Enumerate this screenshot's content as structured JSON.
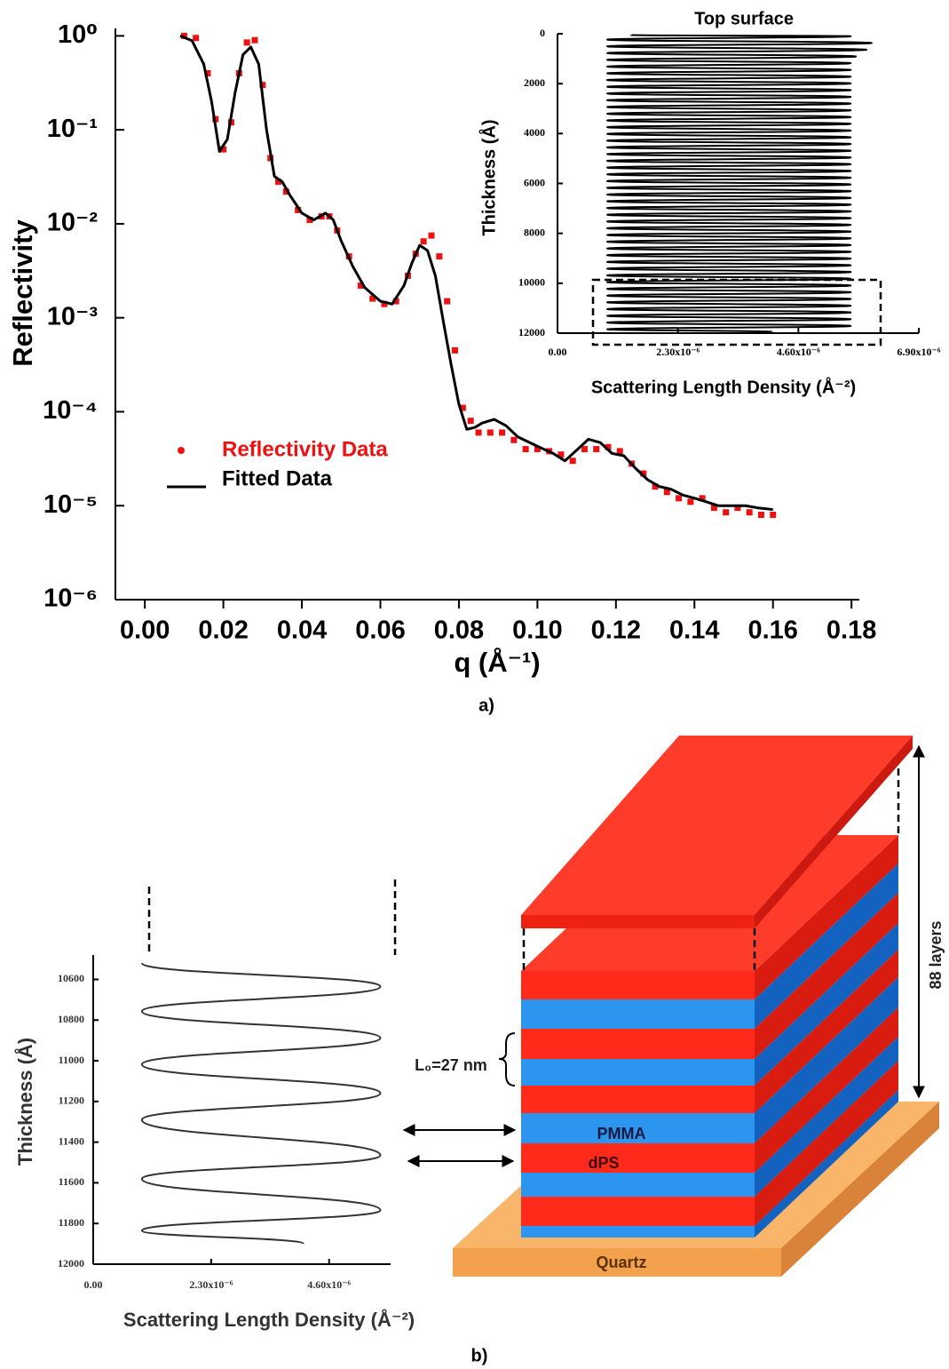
{
  "chart_data": [
    {
      "type": "line",
      "x_label": "q (Å⁻¹)",
      "y_label": "Reflectivity",
      "log_y": true,
      "legend_position": "lower left",
      "xlim": [
        -0.0075,
        0.182
      ],
      "ylim": [
        1e-06,
        1.2
      ],
      "xticks": [
        {
          "value": 0,
          "label": "0.00"
        },
        0.02,
        0.04,
        0.06,
        0.08,
        {
          "value": 0.1,
          "label": "0.10"
        },
        0.12,
        0.14,
        0.16,
        0.18
      ],
      "yticks": [
        {
          "value": 1,
          "label": "10⁰"
        },
        {
          "value": 0.1,
          "label": "10⁻¹"
        },
        {
          "value": 0.01,
          "label": "10⁻²"
        },
        {
          "value": 0.001,
          "label": "10⁻³"
        },
        {
          "value": 0.0001,
          "label": "10⁻⁴"
        },
        {
          "value": 1e-05,
          "label": "10⁻⁵"
        },
        {
          "value": 1e-06,
          "label": "10⁻⁶"
        }
      ],
      "series": [
        {
          "name": "Reflectivity Data",
          "type": "scatter",
          "color": "#ee1111",
          "x": [
            0.01,
            0.013,
            0.016,
            0.018,
            0.02,
            0.022,
            0.024,
            0.026,
            0.028,
            0.03,
            0.032,
            0.034,
            0.036,
            0.039,
            0.042,
            0.045,
            0.047,
            0.049,
            0.052,
            0.055,
            0.058,
            0.061,
            0.064,
            0.067,
            0.069,
            0.071,
            0.073,
            0.075,
            0.077,
            0.079,
            0.081,
            0.083,
            0.085,
            0.088,
            0.091,
            0.094,
            0.097,
            0.1,
            0.103,
            0.106,
            0.109,
            0.112,
            0.115,
            0.118,
            0.121,
            0.124,
            0.127,
            0.13,
            0.133,
            0.136,
            0.139,
            0.142,
            0.145,
            0.148,
            0.151,
            0.154,
            0.157,
            0.16
          ],
          "values": [
            1.0,
            0.95,
            0.4,
            0.13,
            0.062,
            0.12,
            0.4,
            0.85,
            0.9,
            0.3,
            0.05,
            0.028,
            0.022,
            0.014,
            0.011,
            0.012,
            0.012,
            0.0085,
            0.0045,
            0.0022,
            0.0016,
            0.0014,
            0.0015,
            0.0028,
            0.0048,
            0.0065,
            0.0075,
            0.0045,
            0.0015,
            0.00045,
            0.00011,
            8e-05,
            6e-05,
            6e-05,
            6e-05,
            5e-05,
            4e-05,
            4e-05,
            3.8e-05,
            3.5e-05,
            3e-05,
            4e-05,
            4e-05,
            4.2e-05,
            3.8e-05,
            2.8e-05,
            2.2e-05,
            1.6e-05,
            1.4e-05,
            1.2e-05,
            1.1e-05,
            1.2e-05,
            9.5e-06,
            8.5e-06,
            9.5e-06,
            8.5e-06,
            8e-06,
            8e-06
          ]
        },
        {
          "name": "Fitted Data",
          "type": "line",
          "color": "#000000",
          "x": [
            0.009,
            0.012,
            0.015,
            0.017,
            0.019,
            0.021,
            0.023,
            0.025,
            0.027,
            0.029,
            0.031,
            0.033,
            0.035,
            0.037,
            0.04,
            0.043,
            0.046,
            0.048,
            0.05,
            0.053,
            0.056,
            0.06,
            0.063,
            0.066,
            0.068,
            0.07,
            0.072,
            0.074,
            0.076,
            0.078,
            0.08,
            0.082,
            0.084,
            0.086,
            0.089,
            0.092,
            0.095,
            0.098,
            0.101,
            0.104,
            0.107,
            0.11,
            0.113,
            0.116,
            0.119,
            0.122,
            0.125,
            0.128,
            0.131,
            0.134,
            0.137,
            0.14,
            0.143,
            0.146,
            0.15,
            0.153,
            0.156,
            0.16
          ],
          "values": [
            1.0,
            0.89,
            0.5,
            0.2,
            0.059,
            0.079,
            0.25,
            0.63,
            0.76,
            0.5,
            0.1,
            0.032,
            0.028,
            0.02,
            0.013,
            0.011,
            0.013,
            0.011,
            0.0066,
            0.0035,
            0.0021,
            0.0015,
            0.0014,
            0.0022,
            0.0038,
            0.0059,
            0.0052,
            0.0028,
            0.00093,
            0.00032,
            0.00012,
            6.5e-05,
            6.8e-05,
            7.6e-05,
            8.3e-05,
            7.1e-05,
            5.4e-05,
            4.7e-05,
            4.1e-05,
            3.6e-05,
            3e-05,
            3.9e-05,
            5.1e-05,
            4.7e-05,
            3.6e-05,
            3.4e-05,
            2.5e-05,
            1.9e-05,
            1.6e-05,
            1.5e-05,
            1.3e-05,
            1.2e-05,
            1.1e-05,
            1e-05,
            1e-05,
            1e-05,
            9.5e-06,
            9.1e-06
          ]
        }
      ]
    },
    {
      "type": "line",
      "title": "Top surface",
      "x_label": "Scattering Length Density (Å⁻²)",
      "y_label": "Thickness (Å)",
      "y_inverted": true,
      "xlim": [
        0,
        6.9e-06
      ],
      "ylim": [
        0,
        12000
      ],
      "xticks": [
        {
          "value": 0,
          "label": "0.00"
        },
        {
          "value": 2.3e-06,
          "label": "2.30x10⁻⁶"
        },
        {
          "value": 4.6e-06,
          "label": "4.60x10⁻⁶"
        },
        {
          "value": 6.9e-06,
          "label": "6.90x10⁻⁶"
        }
      ],
      "yticks": [
        0,
        2000,
        4000,
        6000,
        8000,
        10000,
        12000
      ],
      "series": [
        {
          "color": "#000000",
          "x": [
            1.4e-06,
            5.6e-06,
            9.5e-07,
            6e-06,
            9.5e-07,
            5.9e-06,
            9.5e-07,
            5.7e-06,
            9.5e-07,
            5.6e-06,
            9.5e-07,
            5.6e-06,
            9.5e-07,
            5.6e-06,
            9.5e-07,
            5.6e-06,
            9.5e-07,
            5.6e-06,
            9.5e-07,
            5.6e-06,
            9.5e-07,
            5.6e-06,
            9.5e-07,
            5.6e-06,
            9.5e-07,
            5.6e-06,
            9.5e-07,
            5.6e-06,
            9.5e-07,
            5.6e-06,
            9.5e-07,
            5.6e-06,
            9.5e-07,
            5.6e-06,
            9.5e-07,
            5.6e-06,
            9.5e-07,
            5.6e-06,
            9.5e-07,
            5.6e-06,
            9.5e-07,
            5.6e-06,
            9.5e-07,
            5.6e-06,
            9.5e-07,
            5.6e-06,
            9.5e-07,
            5.6e-06,
            9.5e-07,
            5.6e-06,
            9.5e-07,
            5.6e-06,
            9.5e-07,
            5.6e-06,
            9.5e-07,
            5.6e-06,
            9.5e-07,
            5.6e-06,
            9.5e-07,
            5.6e-06,
            9.5e-07,
            5.6e-06,
            9.5e-07,
            5.6e-06,
            9.5e-07,
            5.6e-06,
            9.5e-07,
            5.6e-06,
            9.5e-07,
            5.6e-06,
            9.5e-07,
            5.6e-06,
            9.5e-07,
            5.6e-06,
            9.5e-07,
            5.6e-06,
            9.5e-07,
            5.6e-06,
            9.5e-07,
            5.6e-06,
            9.5e-07,
            5.6e-06,
            9.5e-07,
            5.6e-06,
            9.5e-07,
            5.6e-06,
            9.5e-07,
            5.6e-06,
            9.5e-07,
            4.1e-06
          ],
          "values": [
            50,
            100,
            235,
            370,
            505,
            640,
            775,
            910,
            1045,
            1180,
            1315,
            1450,
            1585,
            1720,
            1855,
            1990,
            2125,
            2260,
            2395,
            2530,
            2665,
            2800,
            2935,
            3070,
            3205,
            3340,
            3475,
            3610,
            3745,
            3880,
            4015,
            4150,
            4285,
            4420,
            4555,
            4690,
            4825,
            4960,
            5095,
            5230,
            5365,
            5500,
            5635,
            5770,
            5905,
            6040,
            6175,
            6310,
            6445,
            6580,
            6715,
            6850,
            6985,
            7120,
            7255,
            7390,
            7525,
            7660,
            7795,
            7930,
            8065,
            8200,
            8335,
            8470,
            8605,
            8740,
            8875,
            9010,
            9145,
            9280,
            9415,
            9550,
            9685,
            9820,
            9955,
            10090,
            10225,
            10360,
            10495,
            10630,
            10765,
            10900,
            11035,
            11170,
            11305,
            11440,
            11575,
            11710,
            11845,
            11950
          ]
        }
      ]
    },
    {
      "type": "line",
      "x_label": "Scattering Length Density (Å⁻²)",
      "y_label": "Thickness (Å)",
      "y_inverted": true,
      "xlim": [
        0,
        5.8e-06
      ],
      "ylim": [
        10480,
        12000
      ],
      "xticks": [
        {
          "value": 0,
          "label": "0.00"
        },
        {
          "value": 2.3e-06,
          "label": "2.30x10⁻⁶"
        },
        {
          "value": 4.6e-06,
          "label": "4.60x10⁻⁶"
        }
      ],
      "yticks": [
        10600,
        10800,
        11000,
        11200,
        11400,
        11600,
        11800,
        12000
      ],
      "series": [
        {
          "color": "#333333",
          "x": [
            9.5e-07,
            5.6e-06,
            9.5e-07,
            5.6e-06,
            9.5e-07,
            5.6e-06,
            9.5e-07,
            5.6e-06,
            9.5e-07,
            5.6e-06,
            9.5e-07,
            4.1e-06
          ],
          "values": [
            10520,
            10635,
            10757,
            10888,
            11018,
            11160,
            11290,
            11465,
            11580,
            11735,
            11835,
            11900
          ]
        }
      ]
    }
  ],
  "diagram": {
    "layers_label": "88 layers",
    "period_label": "L₀=27 nm",
    "pmma_label": "PMMA",
    "dps_label": "dPS",
    "substrate_label": "Quartz"
  },
  "captions": [
    "a)",
    "b)"
  ]
}
